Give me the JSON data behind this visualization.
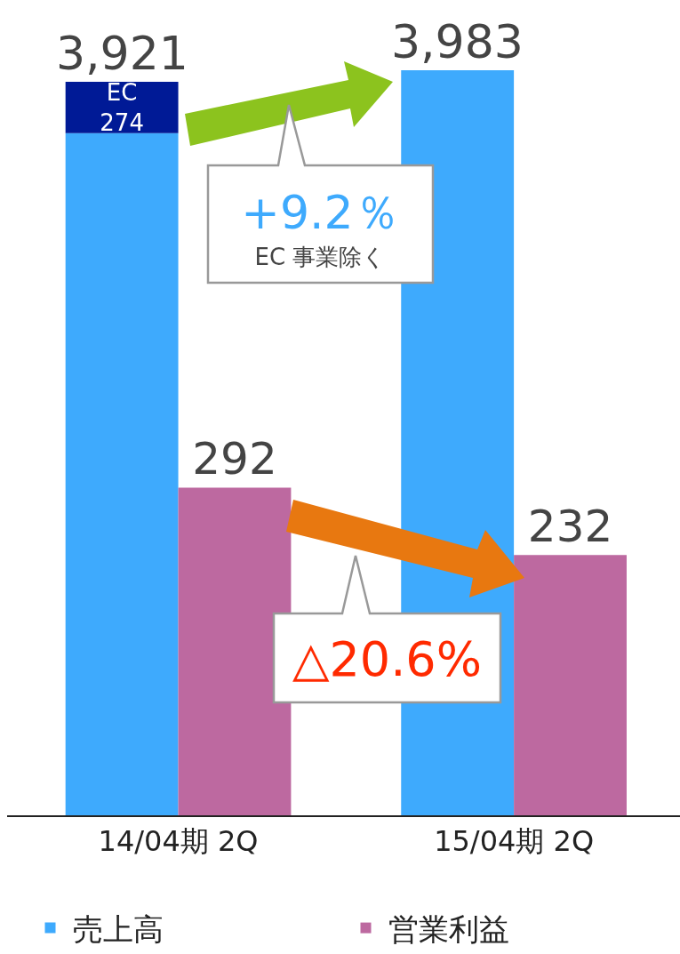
{
  "chart_data": {
    "type": "bar",
    "categories": [
      "14/04期 2Q",
      "15/04期 2Q"
    ],
    "stacked": true,
    "series": [
      {
        "name": "売上高",
        "color": "#3eaafd",
        "values": [
          3647,
          3983
        ]
      },
      {
        "name": "EC",
        "color": "#001a96",
        "values": [
          274,
          null
        ],
        "value_labels": [
          "274",
          null
        ]
      },
      {
        "name": "営業利益",
        "color": "#bd69a0",
        "values": [
          292,
          232
        ],
        "axis": "y2",
        "value_labels": [
          "292",
          "232"
        ]
      }
    ],
    "totals": [
      "3,921",
      "3,983"
    ],
    "ylim": [
      0,
      3983
    ],
    "y2lim": [
      0,
      664
    ],
    "tick_labels": "x",
    "grid": false,
    "legend": "bottom",
    "annotations": [
      "+9.2％",
      "EC 事業除く",
      "△20.6%"
    ]
  }
}
